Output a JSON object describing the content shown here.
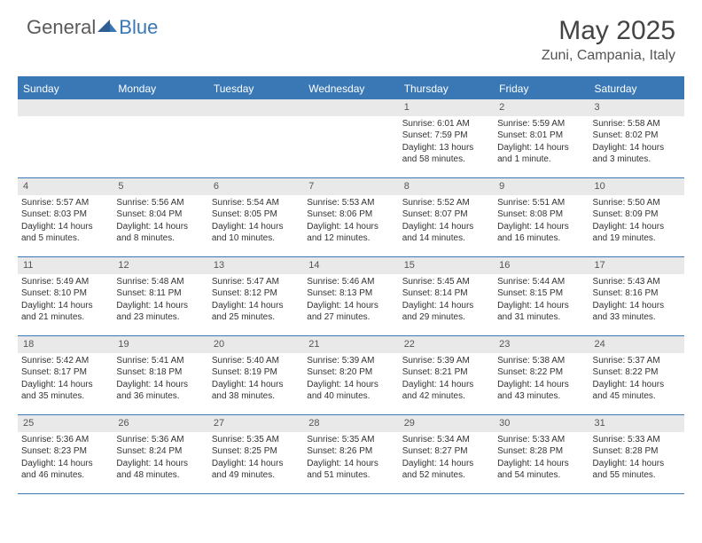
{
  "brand": {
    "general": "General",
    "blue": "Blue"
  },
  "title": "May 2025",
  "location": "Zuni, Campania, Italy",
  "colors": {
    "accent": "#3a78b5",
    "header_bg": "#3a78b5",
    "daynum_bg": "#e9e9e9",
    "text": "#333333",
    "bg": "#ffffff"
  },
  "day_names": [
    "Sunday",
    "Monday",
    "Tuesday",
    "Wednesday",
    "Thursday",
    "Friday",
    "Saturday"
  ],
  "weeks": [
    [
      null,
      null,
      null,
      null,
      {
        "n": "1",
        "sr": "Sunrise: 6:01 AM",
        "ss": "Sunset: 7:59 PM",
        "dl": "Daylight: 13 hours and 58 minutes."
      },
      {
        "n": "2",
        "sr": "Sunrise: 5:59 AM",
        "ss": "Sunset: 8:01 PM",
        "dl": "Daylight: 14 hours and 1 minute."
      },
      {
        "n": "3",
        "sr": "Sunrise: 5:58 AM",
        "ss": "Sunset: 8:02 PM",
        "dl": "Daylight: 14 hours and 3 minutes."
      }
    ],
    [
      {
        "n": "4",
        "sr": "Sunrise: 5:57 AM",
        "ss": "Sunset: 8:03 PM",
        "dl": "Daylight: 14 hours and 5 minutes."
      },
      {
        "n": "5",
        "sr": "Sunrise: 5:56 AM",
        "ss": "Sunset: 8:04 PM",
        "dl": "Daylight: 14 hours and 8 minutes."
      },
      {
        "n": "6",
        "sr": "Sunrise: 5:54 AM",
        "ss": "Sunset: 8:05 PM",
        "dl": "Daylight: 14 hours and 10 minutes."
      },
      {
        "n": "7",
        "sr": "Sunrise: 5:53 AM",
        "ss": "Sunset: 8:06 PM",
        "dl": "Daylight: 14 hours and 12 minutes."
      },
      {
        "n": "8",
        "sr": "Sunrise: 5:52 AM",
        "ss": "Sunset: 8:07 PM",
        "dl": "Daylight: 14 hours and 14 minutes."
      },
      {
        "n": "9",
        "sr": "Sunrise: 5:51 AM",
        "ss": "Sunset: 8:08 PM",
        "dl": "Daylight: 14 hours and 16 minutes."
      },
      {
        "n": "10",
        "sr": "Sunrise: 5:50 AM",
        "ss": "Sunset: 8:09 PM",
        "dl": "Daylight: 14 hours and 19 minutes."
      }
    ],
    [
      {
        "n": "11",
        "sr": "Sunrise: 5:49 AM",
        "ss": "Sunset: 8:10 PM",
        "dl": "Daylight: 14 hours and 21 minutes."
      },
      {
        "n": "12",
        "sr": "Sunrise: 5:48 AM",
        "ss": "Sunset: 8:11 PM",
        "dl": "Daylight: 14 hours and 23 minutes."
      },
      {
        "n": "13",
        "sr": "Sunrise: 5:47 AM",
        "ss": "Sunset: 8:12 PM",
        "dl": "Daylight: 14 hours and 25 minutes."
      },
      {
        "n": "14",
        "sr": "Sunrise: 5:46 AM",
        "ss": "Sunset: 8:13 PM",
        "dl": "Daylight: 14 hours and 27 minutes."
      },
      {
        "n": "15",
        "sr": "Sunrise: 5:45 AM",
        "ss": "Sunset: 8:14 PM",
        "dl": "Daylight: 14 hours and 29 minutes."
      },
      {
        "n": "16",
        "sr": "Sunrise: 5:44 AM",
        "ss": "Sunset: 8:15 PM",
        "dl": "Daylight: 14 hours and 31 minutes."
      },
      {
        "n": "17",
        "sr": "Sunrise: 5:43 AM",
        "ss": "Sunset: 8:16 PM",
        "dl": "Daylight: 14 hours and 33 minutes."
      }
    ],
    [
      {
        "n": "18",
        "sr": "Sunrise: 5:42 AM",
        "ss": "Sunset: 8:17 PM",
        "dl": "Daylight: 14 hours and 35 minutes."
      },
      {
        "n": "19",
        "sr": "Sunrise: 5:41 AM",
        "ss": "Sunset: 8:18 PM",
        "dl": "Daylight: 14 hours and 36 minutes."
      },
      {
        "n": "20",
        "sr": "Sunrise: 5:40 AM",
        "ss": "Sunset: 8:19 PM",
        "dl": "Daylight: 14 hours and 38 minutes."
      },
      {
        "n": "21",
        "sr": "Sunrise: 5:39 AM",
        "ss": "Sunset: 8:20 PM",
        "dl": "Daylight: 14 hours and 40 minutes."
      },
      {
        "n": "22",
        "sr": "Sunrise: 5:39 AM",
        "ss": "Sunset: 8:21 PM",
        "dl": "Daylight: 14 hours and 42 minutes."
      },
      {
        "n": "23",
        "sr": "Sunrise: 5:38 AM",
        "ss": "Sunset: 8:22 PM",
        "dl": "Daylight: 14 hours and 43 minutes."
      },
      {
        "n": "24",
        "sr": "Sunrise: 5:37 AM",
        "ss": "Sunset: 8:22 PM",
        "dl": "Daylight: 14 hours and 45 minutes."
      }
    ],
    [
      {
        "n": "25",
        "sr": "Sunrise: 5:36 AM",
        "ss": "Sunset: 8:23 PM",
        "dl": "Daylight: 14 hours and 46 minutes."
      },
      {
        "n": "26",
        "sr": "Sunrise: 5:36 AM",
        "ss": "Sunset: 8:24 PM",
        "dl": "Daylight: 14 hours and 48 minutes."
      },
      {
        "n": "27",
        "sr": "Sunrise: 5:35 AM",
        "ss": "Sunset: 8:25 PM",
        "dl": "Daylight: 14 hours and 49 minutes."
      },
      {
        "n": "28",
        "sr": "Sunrise: 5:35 AM",
        "ss": "Sunset: 8:26 PM",
        "dl": "Daylight: 14 hours and 51 minutes."
      },
      {
        "n": "29",
        "sr": "Sunrise: 5:34 AM",
        "ss": "Sunset: 8:27 PM",
        "dl": "Daylight: 14 hours and 52 minutes."
      },
      {
        "n": "30",
        "sr": "Sunrise: 5:33 AM",
        "ss": "Sunset: 8:28 PM",
        "dl": "Daylight: 14 hours and 54 minutes."
      },
      {
        "n": "31",
        "sr": "Sunrise: 5:33 AM",
        "ss": "Sunset: 8:28 PM",
        "dl": "Daylight: 14 hours and 55 minutes."
      }
    ]
  ]
}
